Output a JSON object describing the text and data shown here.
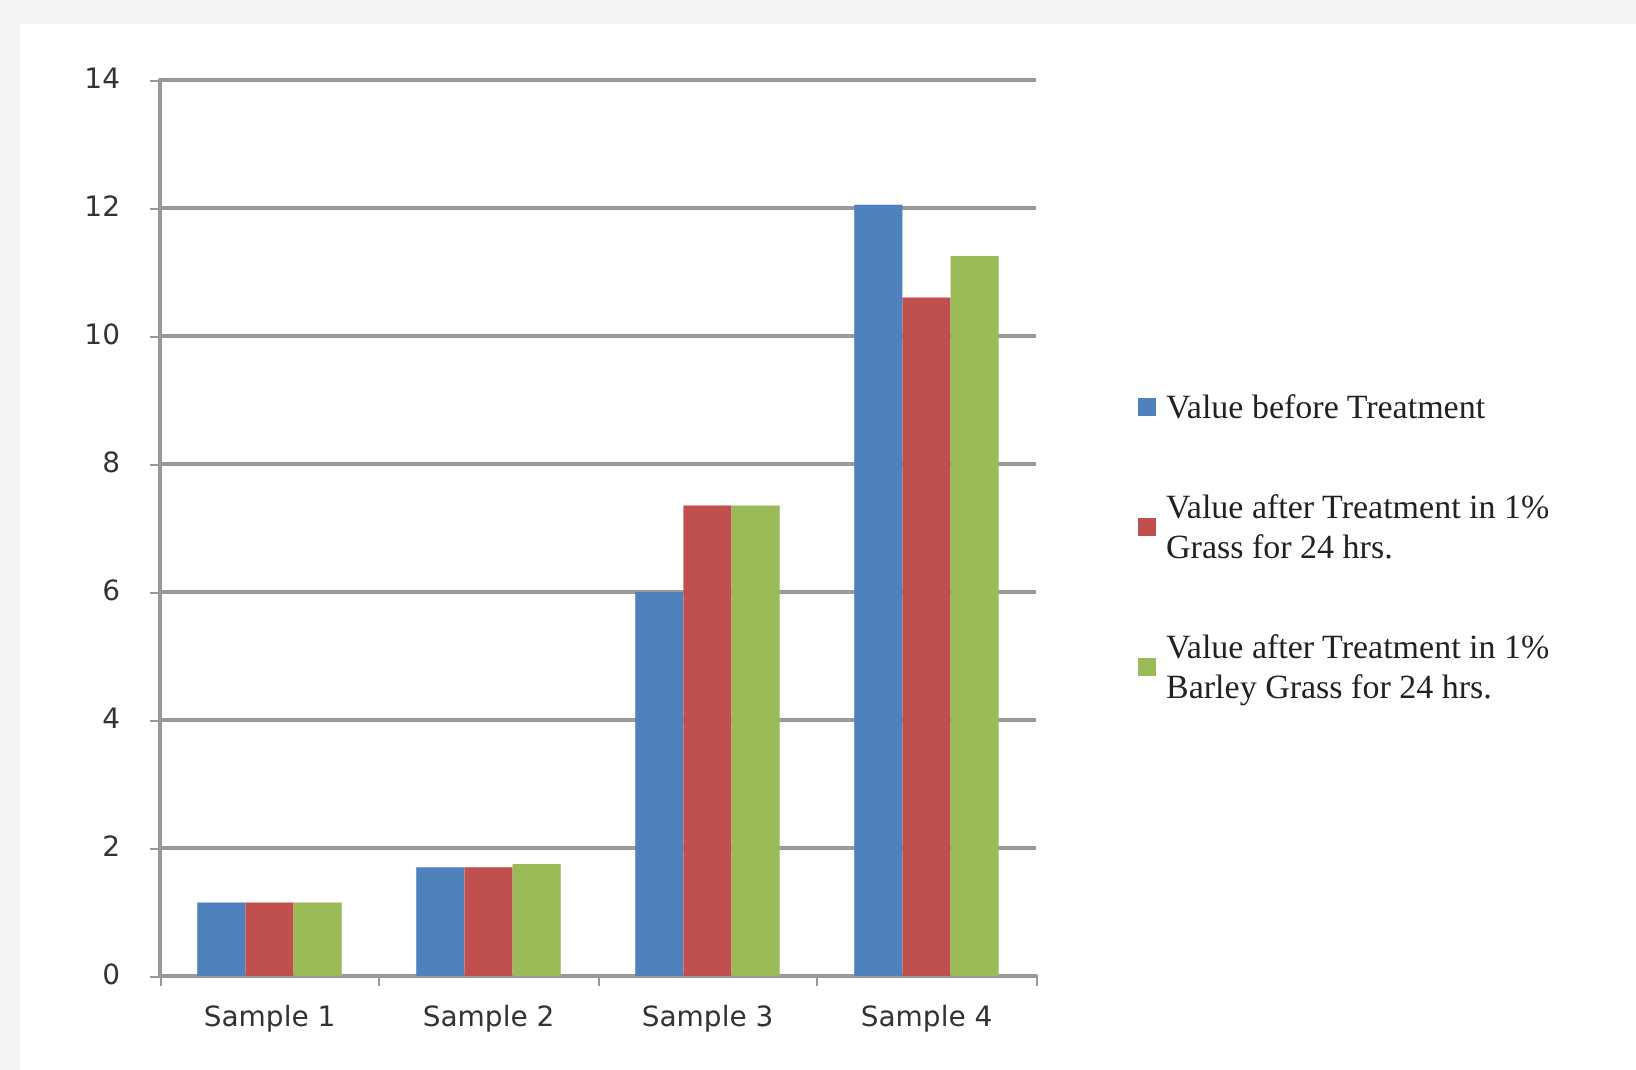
{
  "chart_data": {
    "type": "bar",
    "categories": [
      "Sample 1",
      "Sample 2",
      "Sample 3",
      "Sample 4"
    ],
    "series": [
      {
        "name": "Value before Treatment",
        "color": "#4f81bd",
        "values": [
          1.15,
          1.7,
          6.0,
          12.05
        ]
      },
      {
        "name": "Value after Treatment in 1% Grass for 24 hrs.",
        "color": "#c0504d",
        "values": [
          1.15,
          1.7,
          7.35,
          10.6
        ]
      },
      {
        "name": "Value after Treatment in 1% Barley Grass for 24 hrs.",
        "color": "#9bbb59",
        "values": [
          1.15,
          1.75,
          7.35,
          11.25
        ]
      }
    ],
    "ylim": [
      0,
      14
    ],
    "yticks": [
      0,
      2,
      4,
      6,
      8,
      10,
      12,
      14
    ],
    "grid": "y",
    "legend": "right"
  }
}
